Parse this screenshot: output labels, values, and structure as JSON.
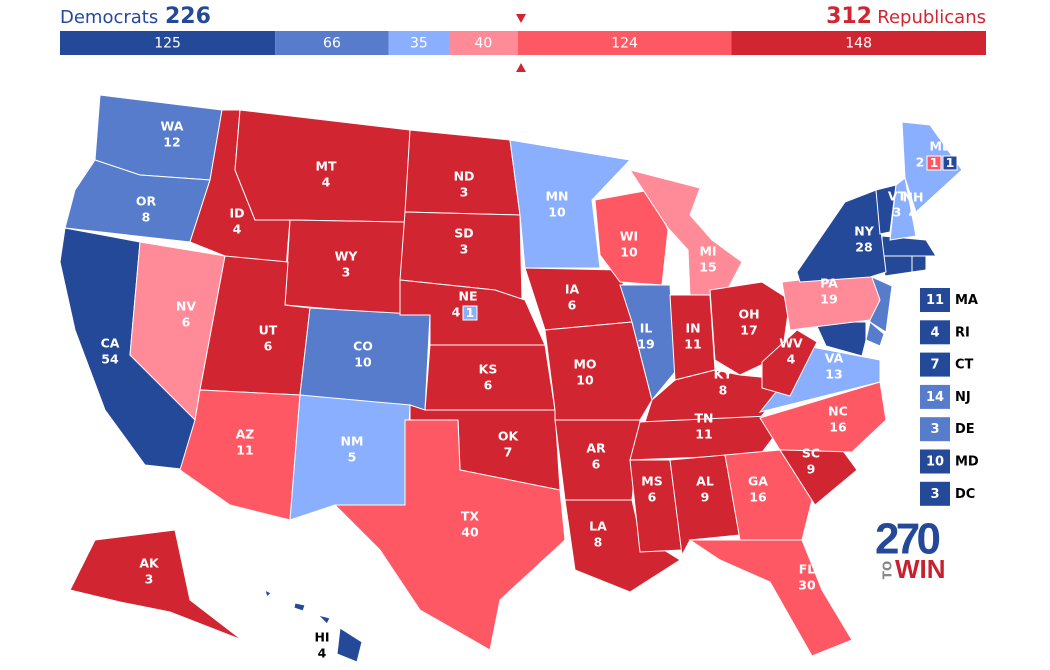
{
  "header": {
    "left_party": "Democrats",
    "left_total": 226,
    "right_total": 312,
    "right_party": "Republicans"
  },
  "ratings": {
    "safe_d": "#244999",
    "likely_d": "#577ccc",
    "lean_d": "#8aafff",
    "lean_r": "#ff8b98",
    "likely_r": "#ff5865",
    "safe_r": "#d22532"
  },
  "bar": {
    "segments": [
      {
        "value": 125,
        "rating": "safe_d"
      },
      {
        "value": 66,
        "rating": "likely_d"
      },
      {
        "value": 35,
        "rating": "lean_d"
      },
      {
        "value": 40,
        "rating": "lean_r"
      },
      {
        "value": 124,
        "rating": "likely_r"
      },
      {
        "value": 148,
        "rating": "safe_r"
      }
    ]
  },
  "states": [
    {
      "abbr": "WA",
      "votes": 12,
      "rating": "likely_d"
    },
    {
      "abbr": "OR",
      "votes": 8,
      "rating": "likely_d"
    },
    {
      "abbr": "CA",
      "votes": 54,
      "rating": "safe_d"
    },
    {
      "abbr": "NV",
      "votes": 6,
      "rating": "lean_r"
    },
    {
      "abbr": "ID",
      "votes": 4,
      "rating": "safe_r"
    },
    {
      "abbr": "MT",
      "votes": 4,
      "rating": "safe_r"
    },
    {
      "abbr": "WY",
      "votes": 3,
      "rating": "safe_r"
    },
    {
      "abbr": "UT",
      "votes": 6,
      "rating": "safe_r"
    },
    {
      "abbr": "AZ",
      "votes": 11,
      "rating": "likely_r"
    },
    {
      "abbr": "CO",
      "votes": 10,
      "rating": "likely_d"
    },
    {
      "abbr": "NM",
      "votes": 5,
      "rating": "lean_d"
    },
    {
      "abbr": "ND",
      "votes": 3,
      "rating": "safe_r"
    },
    {
      "abbr": "SD",
      "votes": 3,
      "rating": "safe_r"
    },
    {
      "abbr": "NE",
      "votes": 4,
      "rating": "safe_r",
      "districts": [
        {
          "votes": 1,
          "rating": "lean_d"
        }
      ]
    },
    {
      "abbr": "KS",
      "votes": 6,
      "rating": "safe_r"
    },
    {
      "abbr": "OK",
      "votes": 7,
      "rating": "safe_r"
    },
    {
      "abbr": "TX",
      "votes": 40,
      "rating": "likely_r"
    },
    {
      "abbr": "MN",
      "votes": 10,
      "rating": "lean_d"
    },
    {
      "abbr": "IA",
      "votes": 6,
      "rating": "safe_r"
    },
    {
      "abbr": "MO",
      "votes": 10,
      "rating": "safe_r"
    },
    {
      "abbr": "AR",
      "votes": 6,
      "rating": "safe_r"
    },
    {
      "abbr": "LA",
      "votes": 8,
      "rating": "safe_r"
    },
    {
      "abbr": "WI",
      "votes": 10,
      "rating": "likely_r"
    },
    {
      "abbr": "IL",
      "votes": 19,
      "rating": "likely_d"
    },
    {
      "abbr": "MI",
      "votes": 15,
      "rating": "lean_r"
    },
    {
      "abbr": "IN",
      "votes": 11,
      "rating": "safe_r"
    },
    {
      "abbr": "OH",
      "votes": 17,
      "rating": "safe_r"
    },
    {
      "abbr": "KY",
      "votes": 8,
      "rating": "safe_r"
    },
    {
      "abbr": "TN",
      "votes": 11,
      "rating": "safe_r"
    },
    {
      "abbr": "MS",
      "votes": 6,
      "rating": "safe_r"
    },
    {
      "abbr": "AL",
      "votes": 9,
      "rating": "safe_r"
    },
    {
      "abbr": "GA",
      "votes": 16,
      "rating": "likely_r"
    },
    {
      "abbr": "FL",
      "votes": 30,
      "rating": "likely_r"
    },
    {
      "abbr": "SC",
      "votes": 9,
      "rating": "safe_r"
    },
    {
      "abbr": "NC",
      "votes": 16,
      "rating": "likely_r"
    },
    {
      "abbr": "VA",
      "votes": 13,
      "rating": "lean_d"
    },
    {
      "abbr": "WV",
      "votes": 4,
      "rating": "safe_r"
    },
    {
      "abbr": "PA",
      "votes": 19,
      "rating": "lean_r"
    },
    {
      "abbr": "NY",
      "votes": 28,
      "rating": "safe_d"
    },
    {
      "abbr": "VT",
      "votes": 3,
      "rating": "safe_d"
    },
    {
      "abbr": "NH",
      "votes": 4,
      "rating": "lean_d"
    },
    {
      "abbr": "ME",
      "votes": 2,
      "rating": "lean_d",
      "districts": [
        {
          "votes": 1,
          "rating": "likely_r"
        },
        {
          "votes": 1,
          "rating": "safe_d"
        }
      ]
    },
    {
      "abbr": "AK",
      "votes": 3,
      "rating": "safe_r"
    },
    {
      "abbr": "HI",
      "votes": 4,
      "rating": "safe_d"
    }
  ],
  "side_list": [
    {
      "votes": 11,
      "abbr": "MA",
      "rating": "safe_d"
    },
    {
      "votes": 4,
      "abbr": "RI",
      "rating": "safe_d"
    },
    {
      "votes": 7,
      "abbr": "CT",
      "rating": "safe_d"
    },
    {
      "votes": 14,
      "abbr": "NJ",
      "rating": "likely_d"
    },
    {
      "votes": 3,
      "abbr": "DE",
      "rating": "likely_d"
    },
    {
      "votes": 10,
      "abbr": "MD",
      "rating": "safe_d"
    },
    {
      "votes": 3,
      "abbr": "DC",
      "rating": "safe_d"
    }
  ],
  "logo": {
    "number": "270",
    "small": "TO",
    "word": "WIN"
  }
}
